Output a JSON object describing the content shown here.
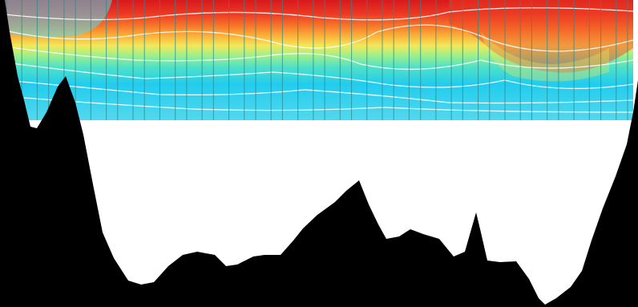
{
  "figure": {
    "type": "ocean-section-contour",
    "colors": {
      "background": "#ffffff",
      "bathymetry": "#000000",
      "station_line": "#2a8a8a",
      "contour_line": "#ffffff",
      "palette": [
        "#d8181c",
        "#ee3b24",
        "#f77a2a",
        "#fbb23a",
        "#f3e85a",
        "#c9f07a",
        "#7fe6a8",
        "#3fdcdc",
        "#22ccee",
        "#53d8ee"
      ]
    },
    "station_count": 46
  }
}
